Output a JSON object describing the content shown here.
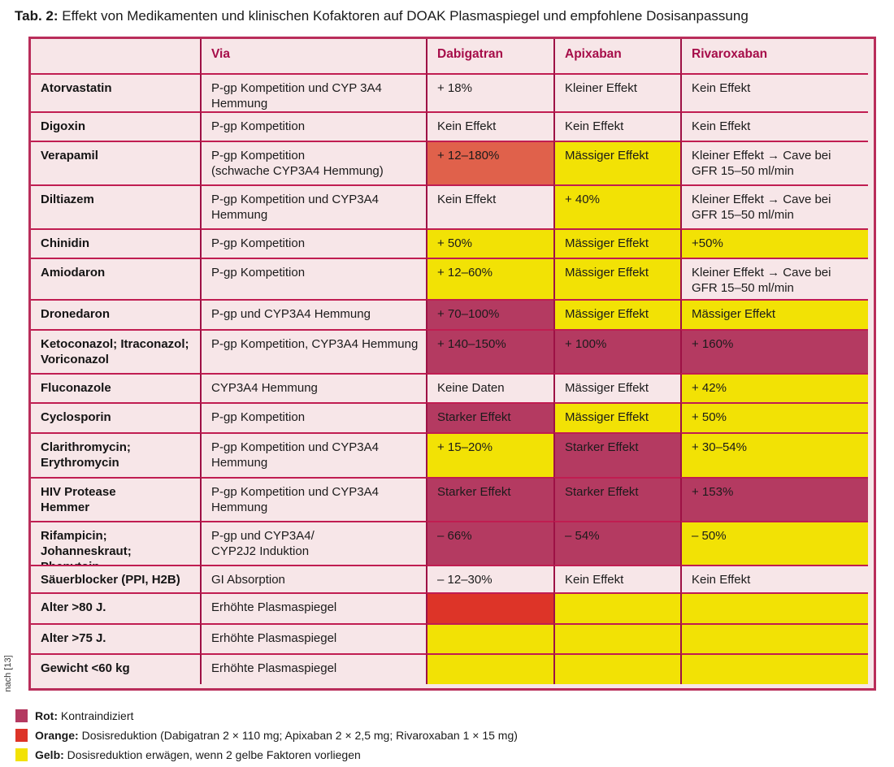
{
  "title": {
    "label": "Tab. 2:",
    "text": " Effekt von Medikamenten und klinischen Kofaktoren auf DOAK Plasmaspiegel und empfohlene Dosisanpassung"
  },
  "source_note": "nach [13]",
  "colors": {
    "plain": "#f7e6e8",
    "yellow": "#f2e205",
    "orange": "#e0614b",
    "red": "#dd3428",
    "darkred": "#b43a61",
    "line_horizontal": "#c01d51",
    "line_vertical": "#9d1145",
    "outer_border": "#b92d5a",
    "header_text": "#a60d49"
  },
  "table": {
    "columns": [
      "",
      "Via",
      "Dabigatran",
      "Apixaban",
      "Rivaroxaban"
    ],
    "rows": [
      {
        "label": "Atorvastatin",
        "via": "P-gp Kompetition und CYP 3A4\nHemmung",
        "cells": [
          {
            "text": "+ 18%",
            "color": "none"
          },
          {
            "text": "Kleiner Effekt",
            "color": "none"
          },
          {
            "text": "Kein Effekt",
            "color": "none"
          }
        ]
      },
      {
        "label": "Digoxin",
        "via": "P-gp Kompetition",
        "cells": [
          {
            "text": "Kein Effekt",
            "color": "none"
          },
          {
            "text": "Kein Effekt",
            "color": "none"
          },
          {
            "text": "Kein Effekt",
            "color": "none"
          }
        ]
      },
      {
        "label": "Verapamil",
        "via": "P-gp Kompetition\n(schwache CYP3A4 Hemmung)",
        "cells": [
          {
            "text": "+ 12–180%",
            "color": "orange"
          },
          {
            "text": "Mässiger Effekt",
            "color": "yellow"
          },
          {
            "text": "Kleiner Effekt → Cave bei\nGFR 15–50 ml/min",
            "color": "none"
          }
        ]
      },
      {
        "label": "Diltiazem",
        "via": "P-gp Kompetition und CYP3A4\nHemmung",
        "cells": [
          {
            "text": "Kein Effekt",
            "color": "none"
          },
          {
            "text": "+ 40%",
            "color": "yellow"
          },
          {
            "text": "Kleiner Effekt → Cave bei\nGFR 15–50 ml/min",
            "color": "none"
          }
        ]
      },
      {
        "label": "Chinidin",
        "via": "P-gp Kompetition",
        "cells": [
          {
            "text": "+ 50%",
            "color": "yellow"
          },
          {
            "text": "Mässiger Effekt",
            "color": "yellow"
          },
          {
            "text": "+50%",
            "color": "yellow"
          }
        ]
      },
      {
        "label": "Amiodaron",
        "via": "P-gp Kompetition",
        "cells": [
          {
            "text": "+ 12–60%",
            "color": "yellow"
          },
          {
            "text": "Mässiger Effekt",
            "color": "yellow"
          },
          {
            "text": "Kleiner Effekt → Cave bei\nGFR 15–50 ml/min",
            "color": "none"
          }
        ]
      },
      {
        "label": "Dronedaron",
        "via": "P-gp und CYP3A4 Hemmung",
        "cells": [
          {
            "text": "+ 70–100%",
            "color": "darkred"
          },
          {
            "text": "Mässiger Effekt",
            "color": "yellow"
          },
          {
            "text": "Mässiger Effekt",
            "color": "yellow"
          }
        ]
      },
      {
        "label": "Ketoconazol; Itraconazol;\nVoriconazol",
        "via": "P-gp Kompetition, CYP3A4 Hemmung",
        "cells": [
          {
            "text": "+ 140–150%",
            "color": "darkred"
          },
          {
            "text": "+ 100%",
            "color": "darkred"
          },
          {
            "text": "+ 160%",
            "color": "darkred"
          }
        ]
      },
      {
        "label": "Fluconazole",
        "via": "CYP3A4 Hemmung",
        "cells": [
          {
            "text": "Keine Daten",
            "color": "none"
          },
          {
            "text": "Mässiger Effekt",
            "color": "none"
          },
          {
            "text": "+ 42%",
            "color": "yellow"
          }
        ]
      },
      {
        "label": "Cyclosporin",
        "via": "P-gp Kompetition",
        "cells": [
          {
            "text": "Starker Effekt",
            "color": "darkred"
          },
          {
            "text": "Mässiger Effekt",
            "color": "yellow"
          },
          {
            "text": "+ 50%",
            "color": "yellow"
          }
        ]
      },
      {
        "label": "Clarithromycin;\nErythromycin",
        "via": "P-gp Kompetition und CYP3A4\nHemmung",
        "cells": [
          {
            "text": "+ 15–20%",
            "color": "yellow"
          },
          {
            "text": "Starker Effekt",
            "color": "darkred"
          },
          {
            "text": "+ 30–54%",
            "color": "yellow"
          }
        ]
      },
      {
        "label": "HIV Protease\nHemmer",
        "via": "P-gp Kompetition und CYP3A4\nHemmung",
        "cells": [
          {
            "text": "Starker Effekt",
            "color": "darkred"
          },
          {
            "text": "Starker Effekt",
            "color": "darkred"
          },
          {
            "text": "+ 153%",
            "color": "darkred"
          }
        ]
      },
      {
        "label": "Rifampicin; Johanneskraut;\nPhenytoin",
        "via": "P-gp und CYP3A4/\nCYP2J2 Induktion",
        "cells": [
          {
            "text": "– 66%",
            "color": "darkred"
          },
          {
            "text": "– 54%",
            "color": "darkred"
          },
          {
            "text": "– 50%",
            "color": "yellow"
          }
        ]
      },
      {
        "label": "Säuerblocker (PPI, H2B)",
        "via": "GI Absorption",
        "cells": [
          {
            "text": "– 12–30%",
            "color": "none"
          },
          {
            "text": "Kein Effekt",
            "color": "none"
          },
          {
            "text": "Kein Effekt",
            "color": "none"
          }
        ]
      },
      {
        "label": "Alter >80 J.",
        "via": "Erhöhte Plasmaspiegel",
        "cells": [
          {
            "text": "",
            "color": "red"
          },
          {
            "text": "",
            "color": "yellow"
          },
          {
            "text": "",
            "color": "yellow"
          }
        ]
      },
      {
        "label": "Alter >75 J.",
        "via": "Erhöhte Plasmaspiegel",
        "cells": [
          {
            "text": "",
            "color": "yellow"
          },
          {
            "text": "",
            "color": "yellow"
          },
          {
            "text": "",
            "color": "yellow"
          }
        ]
      },
      {
        "label": "Gewicht <60 kg",
        "via": "Erhöhte Plasmaspiegel",
        "cells": [
          {
            "text": "",
            "color": "yellow"
          },
          {
            "text": "",
            "color": "yellow"
          },
          {
            "text": "",
            "color": "yellow"
          }
        ]
      }
    ]
  },
  "legend": [
    {
      "swatch": "darkred",
      "label": "Rot:",
      "text": " Kontraindiziert"
    },
    {
      "swatch": "red",
      "label": "Orange:",
      "text": " Dosisreduktion (Dabigatran 2 × 110 mg; Apixaban 2 × 2,5 mg; Rivaroxaban 1 × 15 mg)"
    },
    {
      "swatch": "yellow",
      "label": "Gelb:",
      "text": " Dosisreduktion erwägen, wenn 2 gelbe Faktoren vorliegen"
    }
  ]
}
